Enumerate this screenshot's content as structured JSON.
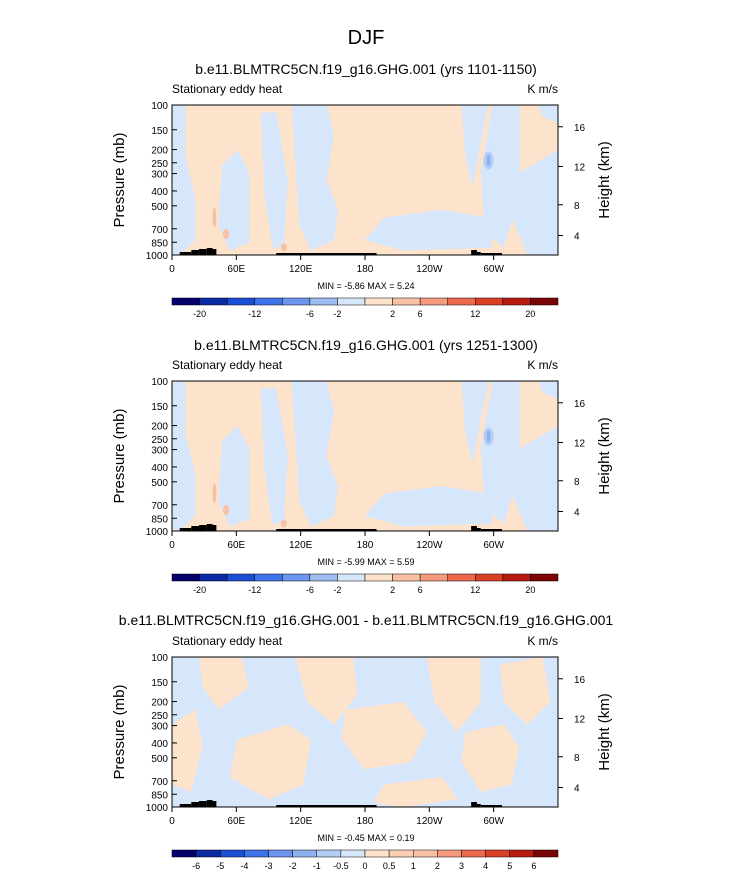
{
  "figure_title": "DJF",
  "colors": {
    "pink": "#fde2cc",
    "blue": "#d6e7fb",
    "blue_mid": "#b3cdf4",
    "blue_dark": "#8fb1ee",
    "red_light": "#f8c0a4",
    "red_mid": "#f59a7d",
    "topo": "#000000"
  },
  "colorbar_colors_12": [
    "#05006b",
    "#0a2aa5",
    "#1a4fd5",
    "#3c73ea",
    "#6b95ee",
    "#9fbdf3",
    "#d6e7fb",
    "#fde2cc",
    "#f8c0a4",
    "#f59a7d",
    "#ec6a4a",
    "#d94125",
    "#b81a10",
    "#7a0505"
  ],
  "colorbar_colors_diff": [
    "#05006b",
    "#0a2aa5",
    "#1a4fd5",
    "#3c73ea",
    "#6b95ee",
    "#8fb1ee",
    "#b3cdf4",
    "#d6e7fb",
    "#fde2cc",
    "#fbcdb2",
    "#f8c0a4",
    "#f59a7d",
    "#ec6a4a",
    "#d94125",
    "#b81a10",
    "#7a0505"
  ],
  "chart_data": [
    {
      "type": "heatmap",
      "title": "b.e11.BLMTRC5CN.f19_g16.GHG.001 (yrs 1101-1150)",
      "left_label": "Stationary eddy heat",
      "right_label": "K m/s",
      "ylabel": "Pressure (mb)",
      "ylabel_right": "Height (km)",
      "y_ticks": [
        "100",
        "150",
        "200",
        "250",
        "300",
        "400",
        "500",
        "700",
        "850",
        "1000"
      ],
      "y_ticks_right": [
        "16",
        "12",
        "8",
        "4"
      ],
      "x_ticks": [
        "0",
        "60E",
        "120E",
        "180",
        "120W",
        "60W"
      ],
      "stats": "MIN = -5.86  MAX =  5.24",
      "min": -5.86,
      "max": 5.24,
      "colorbar_labels": [
        "-20",
        "-12",
        "-6",
        "-2",
        "2",
        "6",
        "12",
        "20"
      ]
    },
    {
      "type": "heatmap",
      "title": "b.e11.BLMTRC5CN.f19_g16.GHG.001 (yrs 1251-1300)",
      "left_label": "Stationary eddy heat",
      "right_label": "K m/s",
      "ylabel": "Pressure (mb)",
      "ylabel_right": "Height (km)",
      "y_ticks": [
        "100",
        "150",
        "200",
        "250",
        "300",
        "400",
        "500",
        "700",
        "850",
        "1000"
      ],
      "y_ticks_right": [
        "16",
        "12",
        "8",
        "4"
      ],
      "x_ticks": [
        "0",
        "60E",
        "120E",
        "180",
        "120W",
        "60W"
      ],
      "stats": "MIN = -5.99  MAX =  5.59",
      "min": -5.99,
      "max": 5.59,
      "colorbar_labels": [
        "-20",
        "-12",
        "-6",
        "-2",
        "2",
        "6",
        "12",
        "20"
      ]
    },
    {
      "type": "heatmap",
      "title": "b.e11.BLMTRC5CN.f19_g16.GHG.001 - b.e11.BLMTRC5CN.f19_g16.GHG.001",
      "left_label": "Stationary eddy heat",
      "right_label": "K m/s",
      "ylabel": "Pressure (mb)",
      "ylabel_right": "Height (km)",
      "y_ticks": [
        "100",
        "150",
        "200",
        "250",
        "300",
        "400",
        "500",
        "700",
        "850",
        "1000"
      ],
      "y_ticks_right": [
        "16",
        "12",
        "8",
        "4"
      ],
      "x_ticks": [
        "0",
        "60E",
        "120E",
        "180",
        "120W",
        "60W"
      ],
      "stats": "MIN = -0.45  MAX =  0.19",
      "min": -0.45,
      "max": 0.19,
      "colorbar_labels": [
        "-6",
        "-5",
        "-4",
        "-3",
        "-2",
        "-1",
        "-0.5",
        "0",
        "0.5",
        "1",
        "2",
        "3",
        "4",
        "5",
        "6"
      ]
    }
  ]
}
